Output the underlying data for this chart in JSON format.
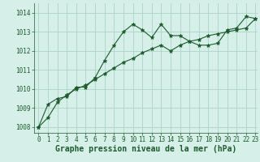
{
  "title": "",
  "xlabel": "Graphe pression niveau de la mer (hPa)",
  "ylabel": "",
  "background_color": "#d6efe8",
  "grid_color": "#b0d8cc",
  "line_color": "#1a5c2a",
  "xlim": [
    -0.5,
    23.2
  ],
  "ylim": [
    1007.7,
    1014.5
  ],
  "yticks": [
    1008,
    1009,
    1010,
    1011,
    1012,
    1013,
    1014
  ],
  "xticks": [
    0,
    1,
    2,
    3,
    4,
    5,
    6,
    7,
    8,
    9,
    10,
    11,
    12,
    13,
    14,
    15,
    16,
    17,
    18,
    19,
    20,
    21,
    22,
    23
  ],
  "series1_x": [
    0,
    1,
    2,
    3,
    4,
    5,
    6,
    7,
    8,
    9,
    10,
    11,
    12,
    13,
    14,
    15,
    16,
    17,
    18,
    19,
    20,
    21,
    22,
    23
  ],
  "series1_y": [
    1008.0,
    1009.2,
    1009.5,
    1009.6,
    1010.1,
    1010.1,
    1010.6,
    1011.5,
    1012.3,
    1013.0,
    1013.4,
    1013.1,
    1012.7,
    1013.4,
    1012.8,
    1012.8,
    1012.5,
    1012.3,
    1012.3,
    1012.4,
    1013.1,
    1013.2,
    1013.8,
    1013.7
  ],
  "series2_x": [
    0,
    1,
    2,
    3,
    4,
    5,
    6,
    7,
    8,
    9,
    10,
    11,
    12,
    13,
    14,
    15,
    16,
    17,
    18,
    19,
    20,
    21,
    22,
    23
  ],
  "series2_y": [
    1008.0,
    1008.5,
    1009.3,
    1009.7,
    1010.0,
    1010.2,
    1010.5,
    1010.8,
    1011.1,
    1011.4,
    1011.6,
    1011.9,
    1012.1,
    1012.3,
    1012.0,
    1012.3,
    1012.5,
    1012.6,
    1012.8,
    1012.9,
    1013.0,
    1013.1,
    1013.2,
    1013.7
  ],
  "tick_fontsize": 5.5,
  "xlabel_fontsize": 7,
  "marker": "*",
  "marker_size": 3.5,
  "linewidth": 0.8
}
